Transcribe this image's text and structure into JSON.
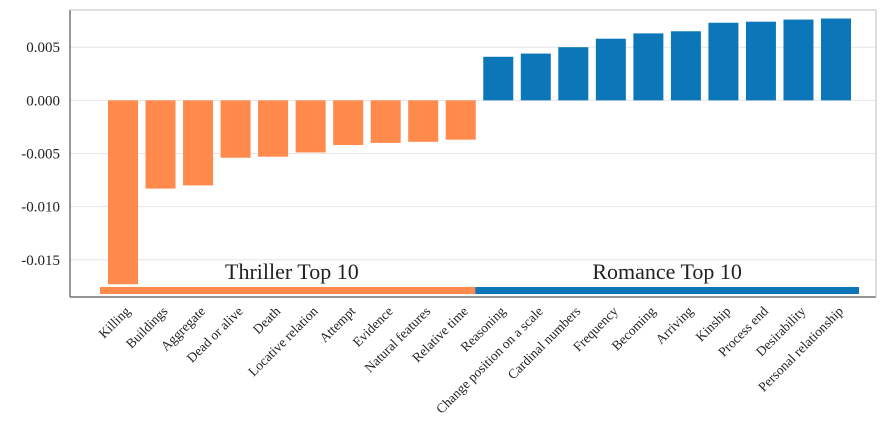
{
  "chart_data": {
    "type": "bar",
    "title": "",
    "xlabel": "",
    "ylabel": "",
    "ylim": [
      -0.0185,
      0.0085
    ],
    "yticks": [
      -0.015,
      -0.01,
      -0.005,
      0.0,
      0.005
    ],
    "ytick_labels": [
      "-0.015",
      "-0.010",
      "-0.005",
      "0.000",
      "0.005"
    ],
    "grid": "horizontal",
    "categories": [
      "Killing",
      "Buildings",
      "Aggregate",
      "Dead or alive",
      "Death",
      "Locative relation",
      "Attempt",
      "Evidence",
      "Natural features",
      "Relative time",
      "Reasoning",
      "Change position on a scale",
      "Cardinal numbers",
      "Frequency",
      "Becoming",
      "Arriving",
      "Kinship",
      "Process end",
      "Desirability",
      "Personal relationship"
    ],
    "values": [
      -0.0173,
      -0.0083,
      -0.008,
      -0.0054,
      -0.0053,
      -0.0049,
      -0.0042,
      -0.004,
      -0.0039,
      -0.0037,
      0.0041,
      0.0044,
      0.005,
      0.0058,
      0.0063,
      0.0065,
      0.0073,
      0.0074,
      0.0076,
      0.0077
    ],
    "groups": [
      {
        "label": "Thriller Top 10",
        "start": 0,
        "end": 9,
        "color": "#ff8a4c"
      },
      {
        "label": "Romance Top 10",
        "start": 10,
        "end": 19,
        "color": "#0c77b8"
      }
    ],
    "colors": {
      "negative": "#ff8a4c",
      "positive": "#0c77b8",
      "grid": "#e6e6ea",
      "axis": "#555555"
    }
  }
}
